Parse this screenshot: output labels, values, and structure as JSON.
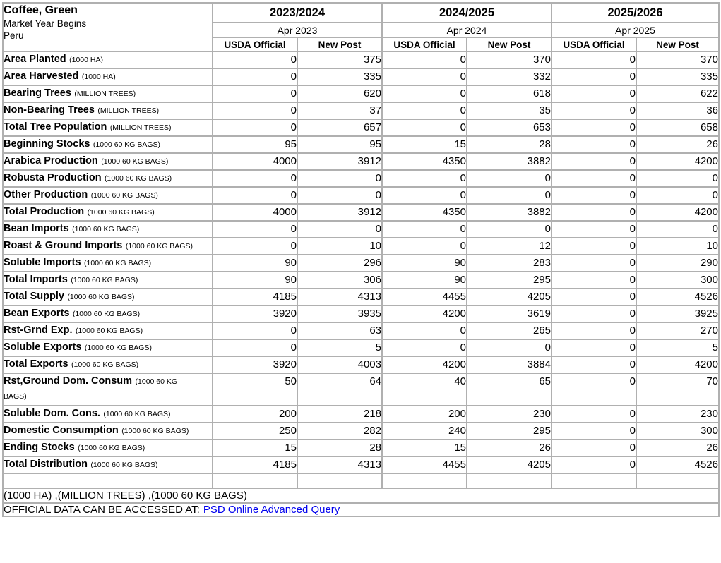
{
  "header": {
    "commodity": "Coffee, Green",
    "market_year_label": "Market Year Begins",
    "country": "Peru"
  },
  "columns": {
    "year_groups": [
      {
        "year": "2023/2024",
        "begin": "Apr 2023"
      },
      {
        "year": "2024/2025",
        "begin": "Apr 2024"
      },
      {
        "year": "2025/2026",
        "begin": "Apr 2025"
      }
    ],
    "sub_headers": [
      "USDA Official",
      "New Post"
    ]
  },
  "rows": [
    {
      "label": "Area Planted",
      "unit": "(1000 HA)",
      "values": [
        "0",
        "375",
        "0",
        "370",
        "0",
        "370"
      ]
    },
    {
      "label": "Area Harvested",
      "unit": "(1000 HA)",
      "values": [
        "0",
        "335",
        "0",
        "332",
        "0",
        "335"
      ]
    },
    {
      "label": "Bearing Trees",
      "unit": "(MILLION TREES)",
      "values": [
        "0",
        "620",
        "0",
        "618",
        "0",
        "622"
      ]
    },
    {
      "label": "Non-Bearing Trees",
      "unit": "(MILLION TREES)",
      "values": [
        "0",
        "37",
        "0",
        "35",
        "0",
        "36"
      ]
    },
    {
      "label": "Total Tree Population",
      "unit": "(MILLION TREES)",
      "values": [
        "0",
        "657",
        "0",
        "653",
        "0",
        "658"
      ]
    },
    {
      "label": "Beginning Stocks",
      "unit": "(1000 60 KG BAGS)",
      "values": [
        "95",
        "95",
        "15",
        "28",
        "0",
        "26"
      ]
    },
    {
      "label": "Arabica Production",
      "unit": "(1000 60 KG BAGS)",
      "values": [
        "4000",
        "3912",
        "4350",
        "3882",
        "0",
        "4200"
      ]
    },
    {
      "label": "Robusta Production",
      "unit": "(1000 60 KG BAGS)",
      "values": [
        "0",
        "0",
        "0",
        "0",
        "0",
        "0"
      ]
    },
    {
      "label": "Other Production",
      "unit": "(1000 60 KG BAGS)",
      "values": [
        "0",
        "0",
        "0",
        "0",
        "0",
        "0"
      ]
    },
    {
      "label": "Total Production",
      "unit": "(1000 60 KG BAGS)",
      "values": [
        "4000",
        "3912",
        "4350",
        "3882",
        "0",
        "4200"
      ]
    },
    {
      "label": "Bean Imports",
      "unit": "(1000 60 KG BAGS)",
      "values": [
        "0",
        "0",
        "0",
        "0",
        "0",
        "0"
      ]
    },
    {
      "label": "Roast & Ground Imports",
      "unit": "(1000 60 KG BAGS)",
      "values": [
        "0",
        "10",
        "0",
        "12",
        "0",
        "10"
      ]
    },
    {
      "label": "Soluble Imports",
      "unit": "(1000 60 KG BAGS)",
      "values": [
        "90",
        "296",
        "90",
        "283",
        "0",
        "290"
      ]
    },
    {
      "label": "Total Imports",
      "unit": "(1000 60 KG BAGS)",
      "values": [
        "90",
        "306",
        "90",
        "295",
        "0",
        "300"
      ]
    },
    {
      "label": "Total Supply",
      "unit": "(1000 60 KG BAGS)",
      "values": [
        "4185",
        "4313",
        "4455",
        "4205",
        "0",
        "4526"
      ]
    },
    {
      "label": "Bean Exports",
      "unit": "(1000 60 KG BAGS)",
      "values": [
        "3920",
        "3935",
        "4200",
        "3619",
        "0",
        "3925"
      ]
    },
    {
      "label": "Rst-Grnd Exp.",
      "unit": "(1000 60 KG BAGS)",
      "values": [
        "0",
        "63",
        "0",
        "265",
        "0",
        "270"
      ]
    },
    {
      "label": "Soluble Exports",
      "unit": "(1000 60 KG BAGS)",
      "values": [
        "0",
        "5",
        "0",
        "0",
        "0",
        "5"
      ]
    },
    {
      "label": "Total Exports",
      "unit": "(1000 60 KG BAGS)",
      "values": [
        "3920",
        "4003",
        "4200",
        "3884",
        "0",
        "4200"
      ]
    },
    {
      "label": "Rst,Ground Dom. Consum",
      "unit": "(1000 60 KG BAGS)",
      "tall": true,
      "values": [
        "50",
        "64",
        "40",
        "65",
        "0",
        "70"
      ]
    },
    {
      "label": "Soluble Dom. Cons.",
      "unit": "(1000 60 KG BAGS)",
      "values": [
        "200",
        "218",
        "200",
        "230",
        "0",
        "230"
      ]
    },
    {
      "label": "Domestic Consumption",
      "unit": "(1000 60 KG BAGS)",
      "values": [
        "250",
        "282",
        "240",
        "295",
        "0",
        "300"
      ]
    },
    {
      "label": "Ending Stocks",
      "unit": "(1000 60 KG BAGS)",
      "values": [
        "15",
        "28",
        "15",
        "26",
        "0",
        "26"
      ]
    },
    {
      "label": "Total Distribution",
      "unit": "(1000 60 KG BAGS)",
      "values": [
        "4185",
        "4313",
        "4455",
        "4205",
        "0",
        "4526"
      ]
    }
  ],
  "footer": {
    "units_note": "(1000 HA) ,(MILLION TREES) ,(1000 60 KG BAGS)",
    "official_text": "OFFICIAL DATA CAN BE ACCESSED AT:",
    "link_label": "PSD Online Advanced Query"
  },
  "colors": {
    "link": "#0000ee",
    "border_inner": "#b0b0b0",
    "border_outer": "#8c8c8c",
    "text": "#000000"
  }
}
